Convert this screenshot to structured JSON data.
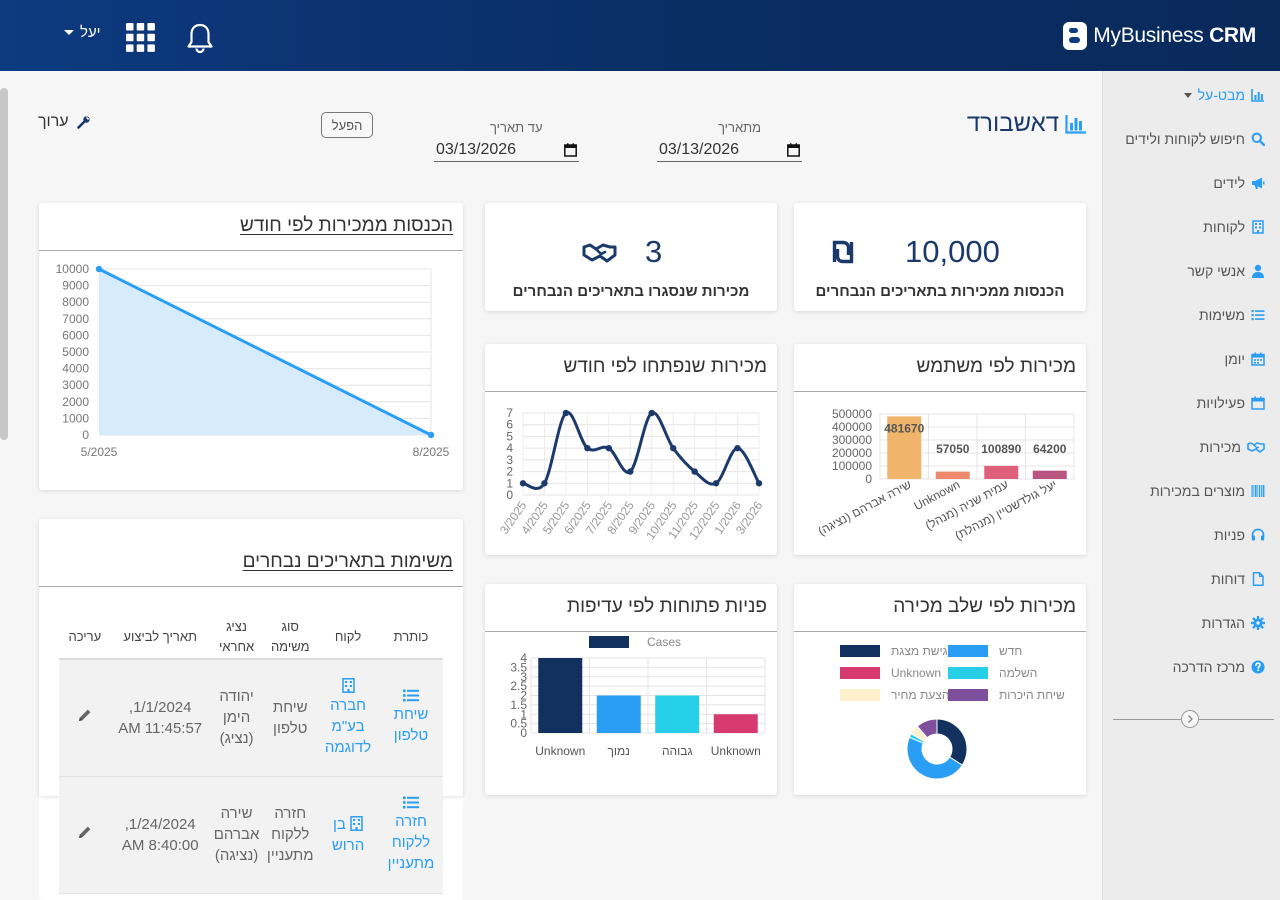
{
  "header": {
    "brand_name": "MyBusiness",
    "brand_suffix": "CRM",
    "user_name": "יעל"
  },
  "sidebar": {
    "view_selector": "מבט-על",
    "items": [
      {
        "label": "חיפוש לקוחות ולידים",
        "icon": "search-icon"
      },
      {
        "label": "לידים",
        "icon": "megaphone-icon"
      },
      {
        "label": "לקוחות",
        "icon": "building-icon"
      },
      {
        "label": "אנשי קשר",
        "icon": "user-icon"
      },
      {
        "label": "משימות",
        "icon": "list-icon"
      },
      {
        "label": "יומן",
        "icon": "calendar-icon"
      },
      {
        "label": "פעילויות",
        "icon": "calendar-check-icon"
      },
      {
        "label": "מכירות",
        "icon": "handshake-icon"
      },
      {
        "label": "מוצרים במכירות",
        "icon": "barcode-icon"
      },
      {
        "label": "פניות",
        "icon": "headset-icon"
      },
      {
        "label": "דוחות",
        "icon": "file-icon"
      },
      {
        "label": "הגדרות",
        "icon": "gear-icon"
      },
      {
        "label": "מרכז הדרכה",
        "icon": "question-icon"
      }
    ]
  },
  "toolbar": {
    "title": "דאשבורד",
    "from_label": "מתאריך",
    "from_value": "03/13/2026",
    "to_label": "עד תאריך",
    "to_value": "03/13/2026",
    "apply_label": "הפעל",
    "edit_label": "ערוך"
  },
  "kpis": {
    "revenue_value": "10,000",
    "revenue_label": "הכנסות ממכירות בתאריכים הנבחרים",
    "closed_value": "3",
    "closed_label": "מכירות שנסגרו בתאריכים הנבחרים"
  },
  "revenue_chart": {
    "title": "הכנסות ממכירות לפי חודש",
    "chart_data": {
      "type": "area",
      "x": [
        "5/2025",
        "8/2025"
      ],
      "values": [
        10000,
        0
      ],
      "yticks": [
        0,
        1000,
        2000,
        3000,
        4000,
        5000,
        6000,
        7000,
        8000,
        9000,
        10000
      ],
      "ylim": [
        0,
        10000
      ],
      "color": "#2a9df4"
    }
  },
  "by_user_chart": {
    "title": "מכירות לפי משתמש",
    "chart_data": {
      "type": "bar",
      "categories": [
        "שירה אברהם (נציגה)",
        "Unknown",
        "עמית שניה (מנהל)",
        "יעל גולדשטיין (מנהלת)"
      ],
      "values": [
        481670,
        57050,
        100890,
        64200
      ],
      "colors": [
        "#f0b46b",
        "#ec8a6b",
        "#e0607b",
        "#b9567f"
      ],
      "yticks": [
        0,
        100000,
        200000,
        300000,
        400000,
        500000
      ],
      "ylim": [
        0,
        500000
      ]
    }
  },
  "by_month_chart": {
    "title": "מכירות שנפתחו לפי חודש",
    "chart_data": {
      "type": "line",
      "x": [
        "3/2025",
        "4/2025",
        "5/2025",
        "6/2025",
        "7/2025",
        "8/2025",
        "9/2025",
        "10/2025",
        "11/2025",
        "12/2025",
        "1/2026",
        "3/2026"
      ],
      "values": [
        1,
        1,
        7,
        4,
        4,
        2,
        7,
        4,
        2,
        1,
        4,
        1
      ],
      "yticks": [
        0,
        1,
        2,
        3,
        4,
        5,
        6,
        7
      ],
      "ylim": [
        0,
        7
      ],
      "color": "#1b3a6b"
    }
  },
  "by_stage_chart": {
    "title": "מכירות לפי שלב מכירה",
    "chart_data": {
      "type": "pie",
      "donut": true,
      "categories": [
        "פגישת מצגת",
        "חדש",
        "Unknown",
        "השלמה",
        "הצעת מחיר",
        "שיחת היכרות"
      ],
      "colors": [
        "#12315e",
        "#2a9df4",
        "#d63a6e",
        "#25cfe8",
        "#fdf0cc",
        "#7e4f9c"
      ],
      "values": [
        33,
        46,
        0,
        2,
        5,
        11
      ]
    }
  },
  "tickets_chart": {
    "title": "פניות פתוחות לפי עדיפות",
    "chart_data": {
      "type": "bar",
      "series_name": "Cases",
      "categories": [
        "Unknown",
        "נמוך",
        "גבוהה",
        "Unknown"
      ],
      "values": [
        4,
        2,
        2,
        1
      ],
      "colors": [
        "#12315e",
        "#2a9df4",
        "#25cfe8",
        "#d63a6e"
      ],
      "yticks": [
        0,
        0.5,
        1,
        1.5,
        2,
        2.5,
        3,
        3.5,
        4
      ],
      "ylim": [
        0,
        4
      ]
    }
  },
  "tasks": {
    "title": "משימות בתאריכים נבחרים",
    "columns": [
      "כותרת",
      "לקוח",
      "סוג משימה",
      "נציג אחראי",
      "תאריך לביצוע",
      "עריכה"
    ],
    "rows": [
      {
        "title": "שיחת טלפון",
        "client": "חברה בע\"מ לדוגמה",
        "type": "שיחת טלפון",
        "owner": "יהודה הימן (נציג)",
        "due": "1/1/2024, 11:45:57 AM"
      },
      {
        "title": "חזרה ללקוח מתעניין",
        "client": "בן הרוש",
        "type": "חזרה ללקוח מתעניין",
        "owner": "שירה אברהם (נציגה)",
        "due": "1/24/2024, 8:40:00 AM"
      }
    ]
  }
}
